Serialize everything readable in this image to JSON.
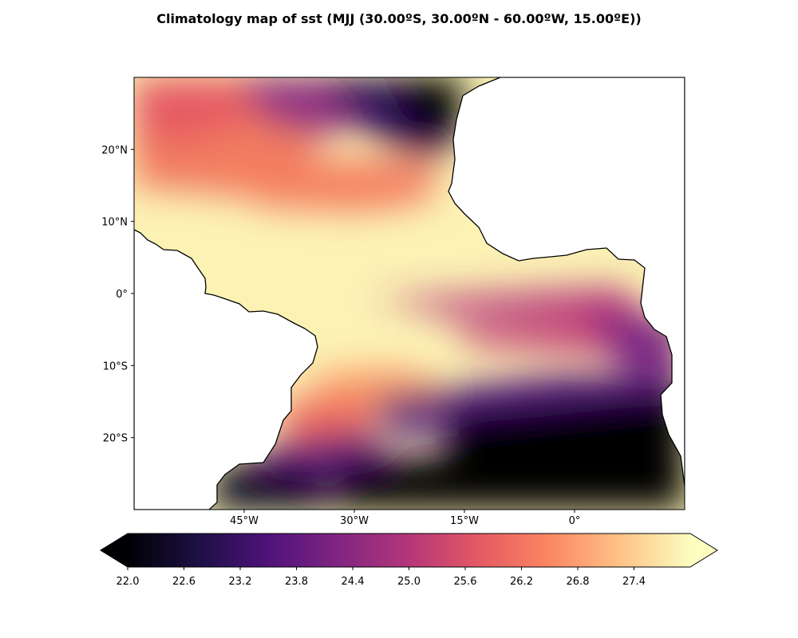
{
  "title": "Climatology map of sst (MJJ (30.00ºS, 30.00ºN - 60.00ºW, 15.00ºE))",
  "map": {
    "lon_range": [
      -60,
      15
    ],
    "lat_range": [
      -30,
      30
    ],
    "lon_ticks": [
      {
        "value": -45,
        "label": "45°W"
      },
      {
        "value": -30,
        "label": "30°W"
      },
      {
        "value": -15,
        "label": "15°W"
      },
      {
        "value": 0,
        "label": "0°"
      }
    ],
    "lat_ticks": [
      {
        "value": 20,
        "label": "20°N"
      },
      {
        "value": 10,
        "label": "10°N"
      },
      {
        "value": 0,
        "label": "0°"
      },
      {
        "value": -10,
        "label": "10°S"
      },
      {
        "value": -20,
        "label": "20°S"
      }
    ],
    "land_color": "#ffffff",
    "coastline_color": "#000000"
  },
  "colorbar": {
    "colormap": "magma",
    "min": 22.0,
    "max": 28.0,
    "extend": "both",
    "ticks": [
      "22.0",
      "22.6",
      "23.2",
      "23.8",
      "24.4",
      "25.0",
      "25.6",
      "26.2",
      "26.8",
      "27.4"
    ],
    "tick_values": [
      22.0,
      22.6,
      23.2,
      23.8,
      24.4,
      25.0,
      25.6,
      26.2,
      26.8,
      27.4
    ],
    "stops": [
      "#000004",
      "#1c1044",
      "#4f127b",
      "#812581",
      "#b5367a",
      "#e55964",
      "#fb8761",
      "#fec287",
      "#fcfdbf"
    ]
  }
}
